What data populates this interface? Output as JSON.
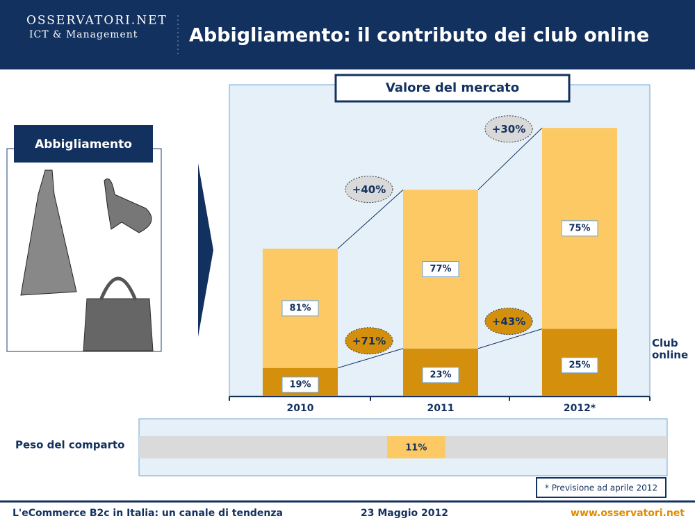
{
  "header": {
    "logo": "OSSERVATORI.NET",
    "logo_sub": "ICT & Management",
    "title": "Abbigliamento: il contributo dei club online"
  },
  "side_label": "Abbigliamento",
  "chart_data": {
    "type": "stacked_bar",
    "title": "Valore del mercato",
    "categories": [
      "2010",
      "2011",
      "2012*"
    ],
    "series": [
      {
        "name": "Club online",
        "color": "#d4900c",
        "values": [
          19,
          23,
          25
        ],
        "value_labels": [
          "19%",
          "23%",
          "25%"
        ]
      },
      {
        "color": "#fcc965",
        "values": [
          81,
          77,
          75
        ],
        "value_labels": [
          "81%",
          "77%",
          "75%"
        ]
      }
    ],
    "total_growth": [
      null,
      {
        "value": 40,
        "label": "+40%"
      },
      {
        "value": 30,
        "label": "+30%"
      }
    ],
    "club_growth": [
      null,
      {
        "value": 71,
        "label": "+71%"
      },
      {
        "value": 43,
        "label": "+43%"
      }
    ],
    "note": "* Previsione ad aprile 2012"
  },
  "share": {
    "label": "Peso del comparto",
    "value": 11,
    "value_label": "11%"
  },
  "footer": {
    "left": "L'eCommerce B2c in Italia: un canale di tendenza",
    "center": "23 Maggio 2012",
    "right": "www.osservatori.net"
  }
}
